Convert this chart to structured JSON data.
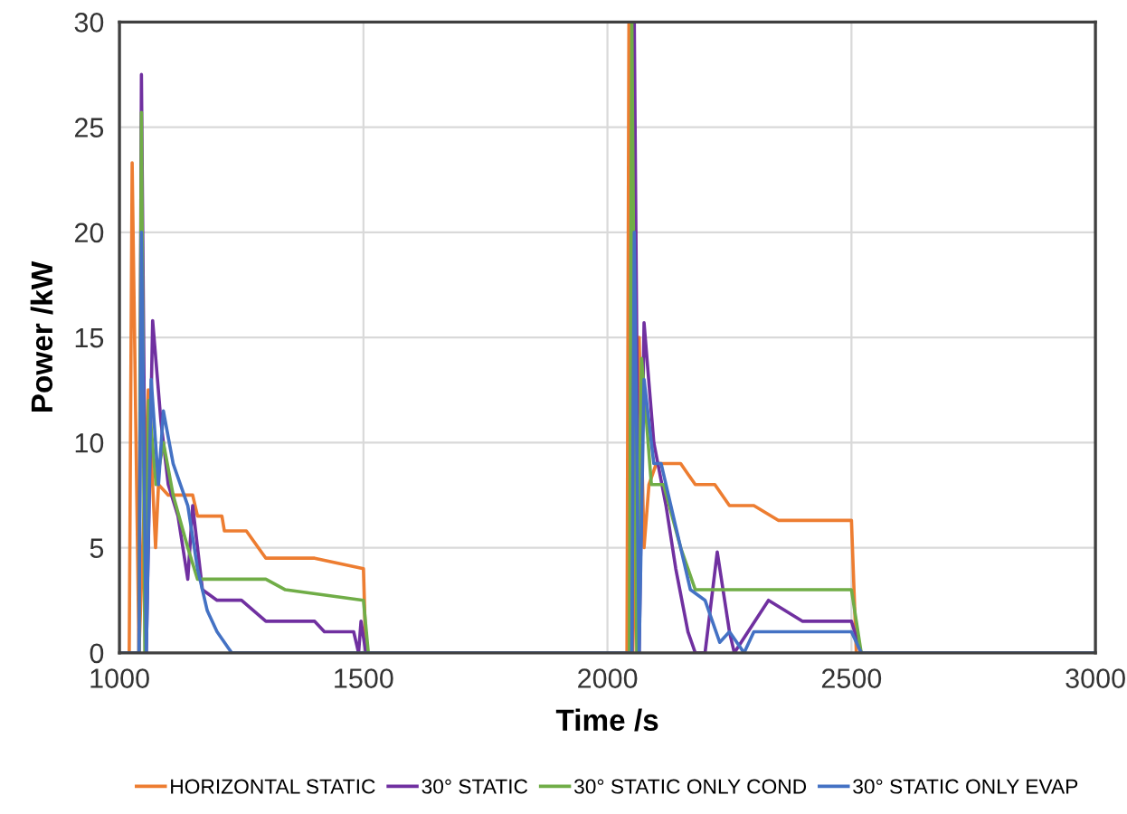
{
  "chart_data": {
    "type": "line",
    "xlabel": "Time /s",
    "ylabel": "Power /kW",
    "xlim": [
      1000,
      3000
    ],
    "xticks": [
      1000,
      1500,
      2000,
      2500,
      3000
    ],
    "ylim": [
      0,
      30
    ],
    "yticks": [
      0,
      5,
      10,
      15,
      20,
      25,
      30
    ],
    "grid": true,
    "legend": "bottom",
    "marker": "none",
    "line_style": "solid",
    "series": [
      {
        "name": "HORIZONTAL STATIC",
        "color": "#ed7d31",
        "x": [
          1000,
          1020,
          1026,
          1040,
          1059,
          1074,
          1080,
          1100,
          1150,
          1160,
          1210,
          1215,
          1260,
          1300,
          1400,
          1500,
          1505,
          2040,
          2044,
          2052,
          2065,
          2075,
          2085,
          2100,
          2150,
          2180,
          2220,
          2250,
          2300,
          2350,
          2500,
          2510,
          3000
        ],
        "values": [
          0,
          0,
          23.3,
          0,
          12.5,
          5,
          8,
          7.5,
          7.5,
          6.5,
          6.5,
          5.8,
          5.8,
          4.5,
          4.5,
          4,
          0,
          0,
          30,
          0,
          15,
          5,
          8,
          9,
          9,
          8,
          8,
          7,
          7,
          6.3,
          6.3,
          0,
          0
        ]
      },
      {
        "name": "30° STATIC",
        "color": "#7030a0",
        "x": [
          1000,
          1040,
          1045,
          1055,
          1068,
          1085,
          1100,
          1120,
          1140,
          1150,
          1170,
          1200,
          1250,
          1300,
          1400,
          1420,
          1480,
          1490,
          1495,
          1505,
          2050,
          2055,
          2065,
          2075,
          2095,
          2120,
          2140,
          2165,
          2180,
          2200,
          2225,
          2250,
          2260,
          2330,
          2400,
          2500,
          2520,
          3000
        ],
        "values": [
          0,
          0,
          27.5,
          0,
          15.8,
          11,
          8,
          6.5,
          3.5,
          7,
          3,
          2.5,
          2.5,
          1.5,
          1.5,
          1,
          1,
          0,
          1.5,
          0,
          0,
          30,
          0,
          15.7,
          10,
          7,
          4,
          1,
          0,
          0,
          4.8,
          1,
          0,
          2.5,
          1.5,
          1.5,
          0,
          0
        ]
      },
      {
        "name": "30° STATIC ONLY COND",
        "color": "#70ad47",
        "x": [
          1000,
          1040,
          1045,
          1052,
          1060,
          1075,
          1090,
          1110,
          1140,
          1160,
          1300,
          1340,
          1500,
          1510,
          2045,
          2050,
          2060,
          2070,
          2090,
          2115,
          2150,
          2180,
          2500,
          2520,
          3000
        ],
        "values": [
          0,
          0,
          25.7,
          0,
          12,
          8,
          10,
          7.5,
          5,
          3.5,
          3.5,
          3,
          2.5,
          0,
          0,
          30,
          0,
          14,
          8,
          8,
          5,
          3,
          3,
          0,
          0
        ]
      },
      {
        "name": "30° STATIC ONLY EVAP",
        "color": "#4472c4",
        "x": [
          1000,
          1040,
          1045,
          1055,
          1065,
          1080,
          1090,
          1110,
          1140,
          1160,
          1180,
          1200,
          1230,
          2050,
          2055,
          2065,
          2075,
          2095,
          2110,
          2140,
          2170,
          2200,
          2230,
          2250,
          2280,
          2300,
          2500,
          2520,
          3000
        ],
        "values": [
          0,
          0,
          20,
          0,
          13,
          8,
          11.5,
          9,
          7,
          4,
          2,
          1,
          0,
          0,
          20,
          0,
          13,
          9,
          9,
          6,
          3,
          2.5,
          0.5,
          1,
          0,
          1,
          1,
          0,
          0
        ]
      }
    ]
  }
}
